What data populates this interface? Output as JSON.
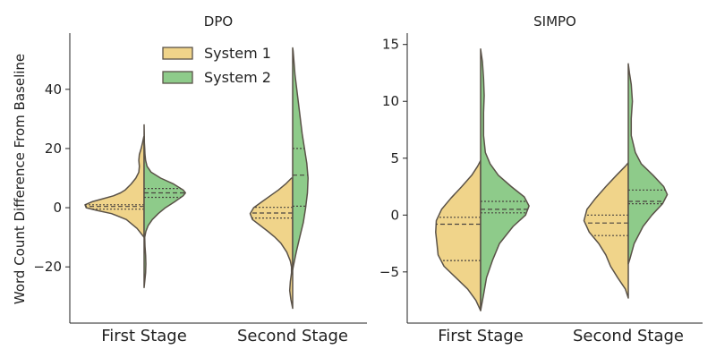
{
  "chart_data": [
    {
      "type": "violin",
      "split": true,
      "title": "DPO",
      "ylabel": "Word Count Difference From Baseline",
      "xlabel": "",
      "ylim": [
        -39,
        59
      ],
      "yticks": [
        -20,
        0,
        20,
        40
      ],
      "ytick_labels": [
        "−20",
        "0",
        "20",
        "40"
      ],
      "categories": [
        "First Stage",
        "Second Stage"
      ],
      "legend": {
        "placement": "top-center",
        "entries": [
          "System 1",
          "System 2"
        ]
      },
      "series": [
        {
          "name": "System 1",
          "color": "#f0d48a",
          "groups": [
            {
              "category": "First Stage",
              "quartiles": [
                -0.5,
                0.4,
                1.0
              ],
              "profile": [
                [
                  -10,
                  0.0
                ],
                [
                  -7,
                  0.12
                ],
                [
                  -4,
                  0.3
                ],
                [
                  -2,
                  0.55
                ],
                [
                  -1,
                  0.78
                ],
                [
                  0,
                  0.98
                ],
                [
                  1,
                  1.0
                ],
                [
                  2,
                  0.88
                ],
                [
                  3,
                  0.7
                ],
                [
                  4,
                  0.52
                ],
                [
                  5,
                  0.4
                ],
                [
                  6,
                  0.32
                ],
                [
                  8,
                  0.22
                ],
                [
                  10,
                  0.14
                ],
                [
                  12,
                  0.09
                ],
                [
                  14,
                  0.08
                ],
                [
                  16,
                  0.09
                ],
                [
                  18,
                  0.08
                ],
                [
                  20,
                  0.05
                ],
                [
                  22,
                  0.025
                ],
                [
                  24,
                  0.005
                ]
              ]
            },
            {
              "category": "Second Stage",
              "quartiles": [
                -3.5,
                -1.8,
                0.1
              ],
              "profile": [
                [
                  -34,
                  0.0
                ],
                [
                  -31,
                  0.03
                ],
                [
                  -28,
                  0.05
                ],
                [
                  -25,
                  0.04
                ],
                [
                  -22,
                  0.02
                ],
                [
                  -20,
                  0.02
                ],
                [
                  -18,
                  0.04
                ],
                [
                  -15,
                  0.1
                ],
                [
                  -12,
                  0.2
                ],
                [
                  -10,
                  0.3
                ],
                [
                  -8,
                  0.42
                ],
                [
                  -6,
                  0.55
                ],
                [
                  -4,
                  0.68
                ],
                [
                  -2,
                  0.72
                ],
                [
                  0,
                  0.66
                ],
                [
                  2,
                  0.52
                ],
                [
                  4,
                  0.38
                ],
                [
                  6,
                  0.24
                ],
                [
                  8,
                  0.12
                ],
                [
                  10,
                  0.02
                ]
              ]
            }
          ]
        },
        {
          "name": "System 2",
          "color": "#8ecb8a",
          "groups": [
            {
              "category": "First Stage",
              "quartiles": [
                3.5,
                5.0,
                6.5
              ],
              "profile": [
                [
                  -27,
                  0.0
                ],
                [
                  -25,
                  0.01
                ],
                [
                  -22,
                  0.025
                ],
                [
                  -19,
                  0.03
                ],
                [
                  -16,
                  0.025
                ],
                [
                  -13,
                  0.015
                ],
                [
                  -10,
                  0.01
                ],
                [
                  -8,
                  0.03
                ],
                [
                  -6,
                  0.07
                ],
                [
                  -4,
                  0.14
                ],
                [
                  -2,
                  0.24
                ],
                [
                  0,
                  0.36
                ],
                [
                  2,
                  0.52
                ],
                [
                  4,
                  0.66
                ],
                [
                  5,
                  0.7
                ],
                [
                  6,
                  0.66
                ],
                [
                  8,
                  0.5
                ],
                [
                  10,
                  0.28
                ],
                [
                  12,
                  0.12
                ],
                [
                  14,
                  0.05
                ],
                [
                  16,
                  0.025
                ],
                [
                  18,
                  0.015
                ],
                [
                  20,
                  0.01
                ],
                [
                  22,
                  0.005
                ],
                [
                  25,
                  0.003
                ],
                [
                  28,
                  0.0
                ]
              ]
            },
            {
              "category": "Second Stage",
              "quartiles": [
                0.5,
                11.0,
                20.0
              ],
              "profile": [
                [
                  -21,
                  0.0
                ],
                [
                  -19,
                  0.02
                ],
                [
                  -15,
                  0.06
                ],
                [
                  -10,
                  0.12
                ],
                [
                  -5,
                  0.18
                ],
                [
                  0,
                  0.22
                ],
                [
                  5,
                  0.25
                ],
                [
                  10,
                  0.26
                ],
                [
                  15,
                  0.24
                ],
                [
                  20,
                  0.2
                ],
                [
                  25,
                  0.16
                ],
                [
                  30,
                  0.13
                ],
                [
                  35,
                  0.1
                ],
                [
                  40,
                  0.07
                ],
                [
                  45,
                  0.04
                ],
                [
                  50,
                  0.02
                ],
                [
                  53,
                  0.008
                ],
                [
                  54,
                  0.0
                ]
              ]
            }
          ]
        }
      ]
    },
    {
      "type": "violin",
      "split": true,
      "title": "SIMPO",
      "ylabel": "",
      "xlabel": "",
      "ylim": [
        -9.5,
        16
      ],
      "yticks": [
        -5,
        0,
        5,
        10,
        15
      ],
      "ytick_labels": [
        "−5",
        "0",
        "5",
        "10",
        "15"
      ],
      "categories": [
        "First Stage",
        "Second Stage"
      ],
      "series": [
        {
          "name": "System 1",
          "color": "#f0d48a",
          "groups": [
            {
              "category": "First Stage",
              "quartiles": [
                -4.0,
                -0.8,
                -0.2
              ],
              "profile": [
                [
                  -8.4,
                  0.0
                ],
                [
                  -7.5,
                  0.08
                ],
                [
                  -6.5,
                  0.22
                ],
                [
                  -5.5,
                  0.42
                ],
                [
                  -4.5,
                  0.62
                ],
                [
                  -3.5,
                  0.72
                ],
                [
                  -2.5,
                  0.74
                ],
                [
                  -1.5,
                  0.76
                ],
                [
                  -0.5,
                  0.75
                ],
                [
                  0.5,
                  0.66
                ],
                [
                  1.5,
                  0.5
                ],
                [
                  2.5,
                  0.32
                ],
                [
                  3.5,
                  0.15
                ],
                [
                  4.3,
                  0.05
                ],
                [
                  4.8,
                  0.0
                ]
              ]
            },
            {
              "category": "Second Stage",
              "quartiles": [
                -1.8,
                -0.7,
                0.0
              ],
              "profile": [
                [
                  -7.3,
                  0.0
                ],
                [
                  -6.5,
                  0.05
                ],
                [
                  -5.5,
                  0.18
                ],
                [
                  -4.5,
                  0.3
                ],
                [
                  -3.5,
                  0.38
                ],
                [
                  -2.5,
                  0.5
                ],
                [
                  -1.5,
                  0.66
                ],
                [
                  -0.5,
                  0.75
                ],
                [
                  0.5,
                  0.7
                ],
                [
                  1.5,
                  0.55
                ],
                [
                  2.5,
                  0.38
                ],
                [
                  3.5,
                  0.2
                ],
                [
                  4.3,
                  0.05
                ],
                [
                  4.6,
                  0.0
                ]
              ]
            }
          ]
        },
        {
          "name": "System 2",
          "color": "#8ecb8a",
          "groups": [
            {
              "category": "First Stage",
              "quartiles": [
                0.2,
                0.5,
                1.2
              ],
              "profile": [
                [
                  -8.4,
                  0.0
                ],
                [
                  -7,
                  0.05
                ],
                [
                  -5.5,
                  0.1
                ],
                [
                  -4,
                  0.2
                ],
                [
                  -2.5,
                  0.32
                ],
                [
                  -1,
                  0.55
                ],
                [
                  0,
                  0.76
                ],
                [
                  0.8,
                  0.82
                ],
                [
                  1.6,
                  0.74
                ],
                [
                  2.5,
                  0.52
                ],
                [
                  3.5,
                  0.3
                ],
                [
                  4.5,
                  0.16
                ],
                [
                  5.5,
                  0.08
                ],
                [
                  7,
                  0.05
                ],
                [
                  9,
                  0.05
                ],
                [
                  10.5,
                  0.06
                ],
                [
                  12,
                  0.05
                ],
                [
                  13.5,
                  0.03
                ],
                [
                  14.6,
                  0.0
                ]
              ]
            },
            {
              "category": "Second Stage",
              "quartiles": [
                1.0,
                1.2,
                2.2
              ],
              "profile": [
                [
                  -4.3,
                  0.0
                ],
                [
                  -3.8,
                  0.03
                ],
                [
                  -2.5,
                  0.1
                ],
                [
                  -1,
                  0.25
                ],
                [
                  0,
                  0.4
                ],
                [
                  1,
                  0.58
                ],
                [
                  1.8,
                  0.66
                ],
                [
                  2.5,
                  0.6
                ],
                [
                  3.5,
                  0.42
                ],
                [
                  4.5,
                  0.22
                ],
                [
                  5.5,
                  0.12
                ],
                [
                  7,
                  0.05
                ],
                [
                  8.5,
                  0.05
                ],
                [
                  10,
                  0.07
                ],
                [
                  11.5,
                  0.05
                ],
                [
                  12.5,
                  0.02
                ],
                [
                  13.3,
                  0.0
                ]
              ]
            }
          ]
        }
      ]
    }
  ]
}
